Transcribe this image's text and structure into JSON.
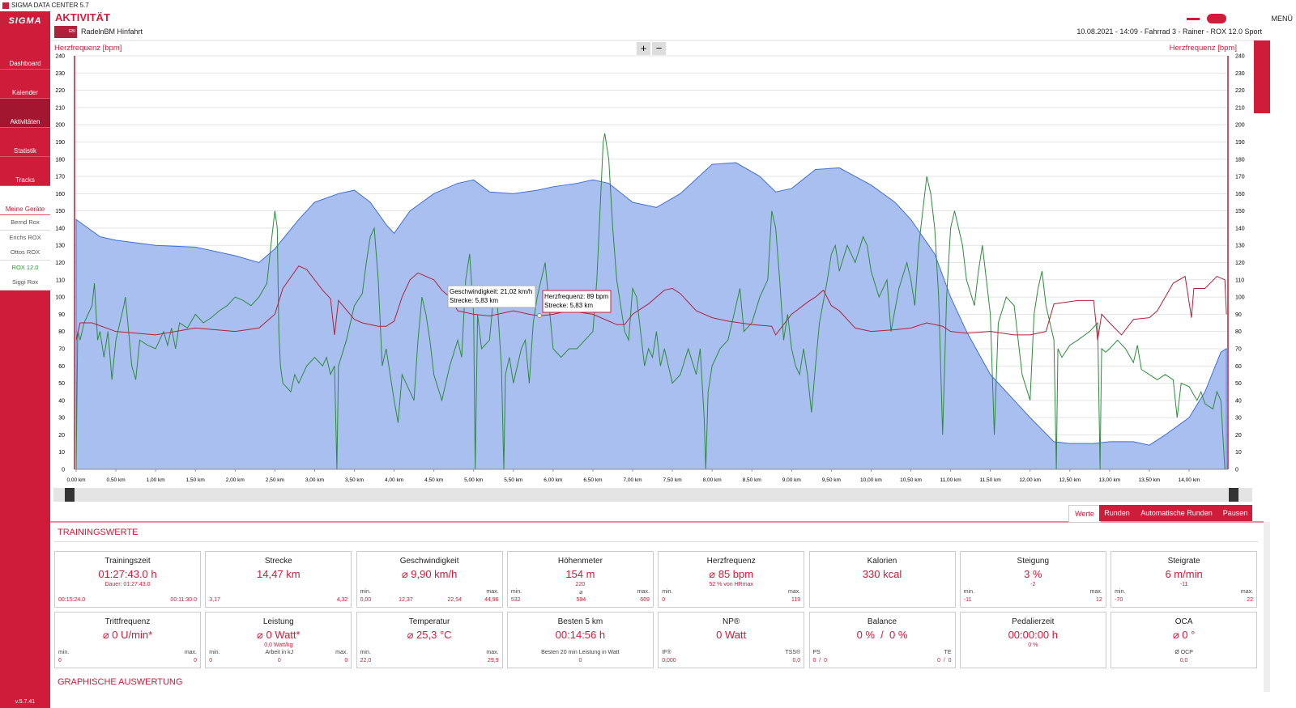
{
  "window_title": "SIGMA DATA CENTER 5.7",
  "sidebar": {
    "logo": "SIGMA",
    "nav": [
      "Dashboard",
      "Kalender",
      "Aktivitäten",
      "Statistik",
      "Tracks",
      "Meine Geräte"
    ],
    "active_nav": 2,
    "devices": [
      "Bernd Rox",
      "Erichs ROX",
      "Ottos ROX",
      "ROX 12.0",
      "Siggi Rox"
    ],
    "active_device": 3,
    "version": "v.5.7.41"
  },
  "header": {
    "title": "AKTIVITÄT",
    "badge": "EBI",
    "activity": "RadelnBM Hinfahrt",
    "info": "10.08.2021 - 14:09 - Fahrrad 3 - Rainer - ROX 12.0 Sport",
    "menu": "MENÜ"
  },
  "chart": {
    "type": "area-line",
    "y_label": "Herzfrequenz [bpm]",
    "y2_label": "Herzfrequenz [bpm]",
    "zoom": [
      "+",
      "−"
    ],
    "xlim": [
      0,
      14.47
    ],
    "xticks": [
      {
        "value": 0,
        "label": "0,00 km"
      },
      {
        "value": 0.5,
        "label": "0,50 km"
      },
      {
        "value": 1,
        "label": "1,00 km"
      },
      {
        "value": 1.5,
        "label": "1,50 km"
      },
      {
        "value": 2,
        "label": "2,00 km"
      },
      {
        "value": 2.5,
        "label": "2,50 km"
      },
      {
        "value": 3,
        "label": "3,00 km"
      },
      {
        "value": 3.5,
        "label": "3,50 km"
      },
      {
        "value": 4,
        "label": "4,00 km"
      },
      {
        "value": 4.5,
        "label": "4,50 km"
      },
      {
        "value": 5,
        "label": "5,00 km"
      },
      {
        "value": 5.5,
        "label": "5,50 km"
      },
      {
        "value": 6,
        "label": "6,00 km"
      },
      {
        "value": 6.5,
        "label": "6,50 km"
      },
      {
        "value": 7,
        "label": "7,00 km"
      },
      {
        "value": 7.5,
        "label": "7,50 km"
      },
      {
        "value": 8,
        "label": "8,00 km"
      },
      {
        "value": 8.5,
        "label": "8,50 km"
      },
      {
        "value": 9,
        "label": "9,00 km"
      },
      {
        "value": 9.5,
        "label": "9,50 km"
      },
      {
        "value": 10,
        "label": "10,00 km"
      },
      {
        "value": 10.5,
        "label": "10,50 km"
      },
      {
        "value": 11,
        "label": "11,00 km"
      },
      {
        "value": 11.5,
        "label": "11,50 km"
      },
      {
        "value": 12,
        "label": "12,00 km"
      },
      {
        "value": 12.5,
        "label": "12,50 km"
      },
      {
        "value": 13,
        "label": "13,00 km"
      },
      {
        "value": 13.5,
        "label": "13,50 km"
      },
      {
        "value": 14,
        "label": "14,00 km"
      }
    ],
    "ylim": [
      0,
      240
    ],
    "yticks": [
      0,
      10,
      20,
      30,
      40,
      50,
      60,
      70,
      80,
      90,
      100,
      110,
      120,
      130,
      140,
      150,
      160,
      170,
      180,
      190,
      200,
      210,
      220,
      230,
      240
    ],
    "y2lim": [
      0,
      240
    ],
    "y2ticks": [
      0,
      10,
      20,
      30,
      40,
      50,
      60,
      70,
      80,
      90,
      100,
      110,
      120,
      130,
      140,
      150,
      160,
      170,
      180,
      190,
      200,
      210,
      220,
      230,
      240
    ],
    "grid": true,
    "series": [
      {
        "kind": "area",
        "color": "#a9bff0",
        "line_color": "#3f6fdc",
        "x": [
          0,
          0.3,
          0.5,
          1,
          1.5,
          2,
          2.3,
          2.5,
          2.8,
          3,
          3.3,
          3.5,
          3.7,
          3.9,
          4,
          4.2,
          4.5,
          4.8,
          5,
          5.2,
          5.5,
          5.8,
          6,
          6.3,
          6.5,
          6.7,
          7,
          7.3,
          7.6,
          8,
          8.3,
          8.6,
          8.8,
          9,
          9.3,
          9.6,
          9.8,
          10,
          10.3,
          10.5,
          10.8,
          11,
          11.2,
          11.5,
          11.8,
          12,
          12.3,
          12.5,
          12.8,
          13,
          13.3,
          13.5,
          13.7,
          14,
          14.2,
          14.4,
          14.47
        ],
        "values": [
          145,
          135,
          133,
          130,
          129,
          124,
          120,
          128,
          145,
          155,
          160,
          162,
          155,
          142,
          137,
          150,
          160,
          166,
          168,
          161,
          160,
          162,
          164,
          166,
          168,
          166,
          155,
          152,
          160,
          177,
          178,
          170,
          161,
          163,
          174,
          175,
          170,
          165,
          155,
          145,
          125,
          100,
          80,
          55,
          40,
          30,
          16,
          15,
          15,
          16,
          16,
          14,
          20,
          30,
          45,
          68,
          70
        ]
      },
      {
        "kind": "line",
        "color": "#2e8b3e",
        "x": [
          0,
          0.02,
          0.05,
          0.1,
          0.15,
          0.2,
          0.23,
          0.27,
          0.3,
          0.35,
          0.4,
          0.45,
          0.5,
          0.6,
          0.62,
          0.65,
          0.7,
          0.75,
          0.8,
          0.9,
          1,
          1.1,
          1.15,
          1.2,
          1.25,
          1.3,
          1.4,
          1.5,
          1.6,
          1.7,
          1.8,
          1.9,
          2,
          2.1,
          2.2,
          2.3,
          2.4,
          2.45,
          2.5,
          2.53,
          2.55,
          2.57,
          2.6,
          2.7,
          2.75,
          2.8,
          2.9,
          3,
          3.1,
          3.15,
          3.2,
          3.25,
          3.28,
          3.3,
          3.4,
          3.5,
          3.6,
          3.65,
          3.7,
          3.75,
          3.8,
          3.85,
          3.9,
          4,
          4.05,
          4.1,
          4.2,
          4.25,
          4.3,
          4.35,
          4.4,
          4.45,
          4.5,
          4.6,
          4.7,
          4.8,
          4.85,
          4.9,
          4.95,
          5,
          5.02,
          5.05,
          5.1,
          5.2,
          5.25,
          5.3,
          5.35,
          5.38,
          5.4,
          5.45,
          5.5,
          5.6,
          5.65,
          5.7,
          5.75,
          5.8,
          5.85,
          5.9,
          5.95,
          6,
          6.1,
          6.2,
          6.3,
          6.4,
          6.5,
          6.55,
          6.6,
          6.63,
          6.65,
          6.7,
          6.75,
          6.8,
          6.85,
          6.9,
          6.95,
          7,
          7.05,
          7.1,
          7.15,
          7.2,
          7.25,
          7.3,
          7.35,
          7.4,
          7.5,
          7.6,
          7.7,
          7.8,
          7.85,
          7.9,
          7.92,
          7.95,
          8,
          8.1,
          8.2,
          8.3,
          8.35,
          8.4,
          8.5,
          8.6,
          8.7,
          8.75,
          8.8,
          8.85,
          8.9,
          8.95,
          9,
          9.05,
          9.1,
          9.15,
          9.2,
          9.25,
          9.3,
          9.35,
          9.45,
          9.5,
          9.55,
          9.6,
          9.7,
          9.8,
          9.9,
          9.95,
          10,
          10.1,
          10.2,
          10.25,
          10.35,
          10.45,
          10.5,
          10.55,
          10.6,
          10.65,
          10.7,
          10.75,
          10.8,
          10.85,
          10.9,
          10.95,
          11,
          11.05,
          11.1,
          11.15,
          11.2,
          11.3,
          11.35,
          11.4,
          11.45,
          11.5,
          11.55,
          11.6,
          11.7,
          11.8,
          11.9,
          12,
          12.05,
          12.1,
          12.15,
          12.2,
          12.3,
          12.33,
          12.35,
          12.4,
          12.5,
          12.6,
          12.75,
          12.85,
          12.88,
          12.9,
          12.95,
          13,
          13.1,
          13.2,
          13.3,
          13.35,
          13.4,
          13.5,
          13.6,
          13.7,
          13.8,
          13.85,
          13.9,
          14,
          14.1,
          14.15,
          14.2,
          14.3,
          14.35,
          14.4,
          14.45
        ],
        "values": [
          0,
          80,
          75,
          85,
          90,
          95,
          108,
          75,
          80,
          65,
          80,
          52,
          75,
          95,
          100,
          85,
          60,
          52,
          75,
          72,
          70,
          80,
          72,
          82,
          70,
          85,
          82,
          90,
          85,
          88,
          92,
          95,
          100,
          98,
          95,
          100,
          108,
          130,
          150,
          140,
          80,
          60,
          50,
          45,
          55,
          50,
          60,
          65,
          60,
          65,
          55,
          60,
          0,
          60,
          75,
          95,
          102,
          120,
          135,
          140,
          110,
          60,
          70,
          40,
          27,
          55,
          45,
          40,
          75,
          100,
          90,
          75,
          55,
          40,
          60,
          75,
          65,
          110,
          125,
          90,
          0,
          90,
          70,
          75,
          100,
          95,
          60,
          0,
          55,
          65,
          50,
          70,
          75,
          50,
          85,
          100,
          110,
          120,
          95,
          70,
          65,
          70,
          70,
          75,
          80,
          110,
          160,
          190,
          195,
          180,
          140,
          110,
          95,
          80,
          75,
          105,
          100,
          80,
          60,
          70,
          65,
          80,
          60,
          70,
          50,
          55,
          70,
          55,
          70,
          30,
          0,
          45,
          60,
          70,
          75,
          95,
          105,
          80,
          85,
          100,
          110,
          150,
          140,
          110,
          75,
          90,
          70,
          60,
          55,
          70,
          55,
          33,
          60,
          85,
          110,
          125,
          130,
          115,
          130,
          120,
          135,
          130,
          115,
          100,
          110,
          80,
          105,
          120,
          110,
          95,
          130,
          150,
          170,
          160,
          140,
          100,
          20,
          100,
          140,
          150,
          140,
          130,
          110,
          95,
          115,
          130,
          110,
          90,
          20,
          85,
          100,
          95,
          55,
          40,
          90,
          105,
          115,
          95,
          75,
          0,
          70,
          65,
          72,
          75,
          80,
          85,
          0,
          70,
          68,
          70,
          75,
          70,
          62,
          72,
          58,
          55,
          52,
          55,
          52,
          30,
          50,
          48,
          40,
          45,
          38,
          35,
          45,
          40,
          0
        ]
      },
      {
        "kind": "line",
        "color": "#b0223b",
        "x": [
          0,
          0.05,
          0.2,
          0.5,
          1,
          1.5,
          2,
          2.3,
          2.5,
          2.6,
          2.8,
          2.9,
          3,
          3.1,
          3.2,
          3.25,
          3.3,
          3.5,
          3.6,
          3.8,
          3.9,
          4,
          4.1,
          4.2,
          4.3,
          4.5,
          4.6,
          4.7,
          4.8,
          5,
          5.2,
          5.5,
          5.7,
          5.83,
          6,
          6.2,
          6.5,
          6.7,
          6.8,
          6.9,
          7,
          7.2,
          7.4,
          7.5,
          7.6,
          7.8,
          8,
          8.2,
          8.5,
          8.75,
          8.8,
          9,
          9.2,
          9.3,
          9.4,
          9.5,
          9.6,
          9.8,
          10,
          10.3,
          10.5,
          10.7,
          10.9,
          11,
          11.2,
          11.5,
          11.8,
          12,
          12.2,
          12.3,
          12.6,
          12.8,
          12.85,
          12.9,
          13,
          13.15,
          13.3,
          13.5,
          13.6,
          13.7,
          13.8,
          13.95,
          14.03,
          14.06,
          14.2,
          14.35,
          14.45,
          14.47
        ],
        "values": [
          75,
          85,
          85,
          80,
          78,
          82,
          80,
          82,
          90,
          105,
          118,
          116,
          110,
          104,
          99,
          78,
          98,
          87,
          85,
          83,
          83,
          86,
          100,
          110,
          114,
          110,
          104,
          100,
          92,
          90,
          89,
          92,
          90,
          89,
          90,
          92,
          90,
          86,
          84,
          84,
          90,
          96,
          104,
          105,
          102,
          92,
          88,
          86,
          84,
          83,
          78,
          90,
          97,
          100,
          104,
          95,
          92,
          82,
          80,
          81,
          82,
          85,
          83,
          80,
          79,
          80,
          78,
          78,
          80,
          96,
          98,
          98,
          75,
          90,
          85,
          78,
          87,
          88,
          92,
          100,
          108,
          112,
          88,
          105,
          105,
          112,
          110,
          90
        ]
      }
    ],
    "tooltips": [
      {
        "lines": [
          "Geschwindigkeit: 21,02 km/h",
          "Strecke: 5,83 km"
        ]
      },
      {
        "lines": [
          "Herzfrequenz: 89 bpm",
          "Strecke: 5,83 km"
        ]
      }
    ]
  },
  "tabs": [
    "Werte",
    "Runden",
    "Automatische Runden",
    "Pausen"
  ],
  "active_tab": 0,
  "section_title": "TRAININGSWERTE",
  "cards": [
    {
      "title": "Trainingszeit",
      "value": "01:27:43.0 h",
      "sub": "Dauer: 01:27:43.0",
      "footer": [
        {
          "value": "00:15:24.0"
        },
        {
          "value": "00:11:30.0"
        }
      ]
    },
    {
      "title": "Strecke",
      "value": "14,47 km",
      "footer": [
        {
          "value": "3,17"
        },
        {
          "value": "4,32"
        }
      ]
    },
    {
      "title": "Geschwindigkeit",
      "value": "⌀ 9,90 km/h",
      "footer": [
        {
          "label": "min.",
          "value": "0,00"
        },
        {
          "value": "12,37"
        },
        {
          "value": "22,54"
        },
        {
          "label": "max.",
          "value": "44,96"
        }
      ]
    },
    {
      "title": "Höhenmeter",
      "value": "154 m",
      "sub": "220",
      "footer": [
        {
          "label": "min.",
          "value": "532"
        },
        {
          "label": "⌀",
          "value": "594"
        },
        {
          "label": "max.",
          "value": "669"
        }
      ]
    },
    {
      "title": "Herzfrequenz",
      "value": "⌀ 85 bpm",
      "sub": "52 % von HRmax",
      "footer": [
        {
          "label": "min.",
          "value": "0"
        },
        {
          "label": "max.",
          "value": "119"
        }
      ]
    },
    {
      "title": "Kalorien",
      "value": "330 kcal"
    },
    {
      "title": "Steigung",
      "value": "3 %",
      "sub": "-2",
      "footer": [
        {
          "label": "min.",
          "value": "-11"
        },
        {
          "label": "max.",
          "value": "12"
        }
      ]
    },
    {
      "title": "Steigrate",
      "value": "6 m/min",
      "sub": "-11",
      "footer": [
        {
          "label": "min.",
          "value": "-70"
        },
        {
          "label": "max.",
          "value": "22"
        }
      ]
    },
    {
      "title": "Trittfrequenz",
      "value": "⌀ 0 U/min*",
      "footer": [
        {
          "label": "min.",
          "value": "0"
        },
        {
          "label": "max.",
          "value": "0"
        }
      ]
    },
    {
      "title": "Leistung",
      "value": "⌀ 0 Watt*",
      "sub": "0,0 Watt/kg",
      "footer": [
        {
          "label": "min.",
          "value": "0"
        },
        {
          "label": "Arbeit in kJ",
          "value": "0"
        },
        {
          "label": "max.",
          "value": "0"
        }
      ]
    },
    {
      "title": "Temperatur",
      "value": "⌀ 25,3 °C",
      "footer": [
        {
          "label": "min.",
          "value": "22,0"
        },
        {
          "label": "max.",
          "value": "29,9"
        }
      ]
    },
    {
      "title": "Besten 5 km",
      "value": "00:14:56 h",
      "footer": [
        {
          "label": "Besten 20 min Leistung in Watt",
          "value": "0"
        }
      ]
    },
    {
      "title": "NP®",
      "value": "0 Watt",
      "footer": [
        {
          "label": "IF®",
          "value": "0,000"
        },
        {
          "label": "TSS®",
          "value": "0,0"
        }
      ]
    },
    {
      "title": "Balance",
      "value": "0 %  /  0 %",
      "footer": [
        {
          "label": "PS",
          "value": "0  /  0"
        },
        {
          "label": "TE",
          "value": "0  /  0"
        }
      ]
    },
    {
      "title": "Pedalierzeit",
      "value": "00:00:00 h",
      "sub": "0 %"
    },
    {
      "title": "OCA",
      "value": "⌀ 0 °",
      "footer": [
        {
          "label": "Ø OCP",
          "value": "0,0"
        }
      ]
    }
  ],
  "footer_title": "GRAPHISCHE AUSWERTUNG"
}
